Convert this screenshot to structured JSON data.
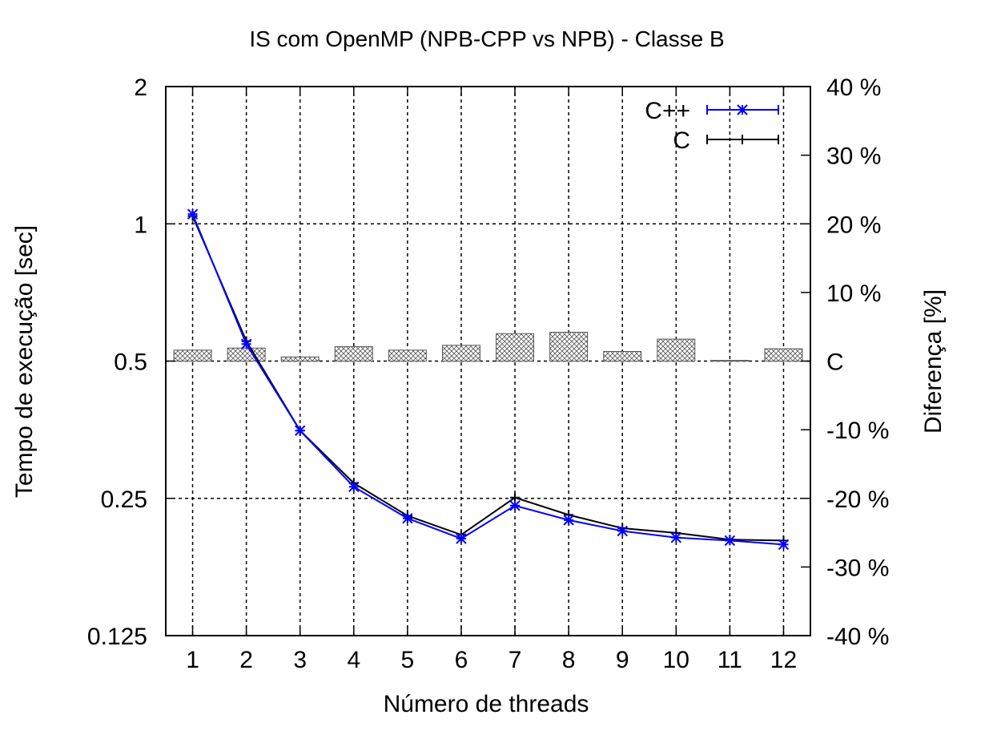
{
  "chart_data": {
    "type": "line",
    "title": "IS com OpenMP (NPB-CPP vs NPB) - Classe B",
    "xlabel": "Número de threads",
    "ylabel": "Tempo de execução [sec]",
    "y2label": "Diferença [%]",
    "categories": [
      "1",
      "2",
      "3",
      "4",
      "5",
      "6",
      "7",
      "8",
      "9",
      "10",
      "11",
      "12"
    ],
    "y_scale": "log2",
    "ylim": [
      0.125,
      2
    ],
    "y_ticks": [
      {
        "value": 0.125,
        "label": "0.125"
      },
      {
        "value": 0.25,
        "label": "0.25"
      },
      {
        "value": 0.5,
        "label": "0.5"
      },
      {
        "value": 1,
        "label": "1"
      },
      {
        "value": 2,
        "label": "2"
      }
    ],
    "y2lim": [
      -40,
      40
    ],
    "y2_ticks": [
      {
        "value": 40,
        "label": "40 %"
      },
      {
        "value": 30,
        "label": "30 %"
      },
      {
        "value": 20,
        "label": "20 %"
      },
      {
        "value": 10,
        "label": "10 %"
      },
      {
        "value": 0,
        "label": "C"
      },
      {
        "value": -10,
        "label": "-10 %"
      },
      {
        "value": -20,
        "label": "-20 %"
      },
      {
        "value": -30,
        "label": "-30 %"
      },
      {
        "value": -40,
        "label": "-40 %"
      }
    ],
    "grid": true,
    "legend_position": "top-right",
    "series": [
      {
        "name": "C++",
        "color": "#0000ff",
        "marker": "asterisk",
        "values": [
          1.05,
          0.545,
          0.352,
          0.265,
          0.226,
          0.204,
          0.241,
          0.224,
          0.212,
          0.205,
          0.202,
          0.198
        ]
      },
      {
        "name": "C",
        "color": "#000000",
        "marker": "plus",
        "values": [
          1.04,
          0.553,
          0.352,
          0.27,
          0.229,
          0.208,
          0.251,
          0.23,
          0.215,
          0.21,
          0.203,
          0.202
        ]
      }
    ],
    "difference_bars": {
      "axis": "y2",
      "values": [
        1.6,
        1.9,
        0.6,
        2.1,
        1.6,
        2.3,
        4.0,
        4.2,
        1.4,
        3.2,
        0.1,
        1.8
      ]
    }
  }
}
